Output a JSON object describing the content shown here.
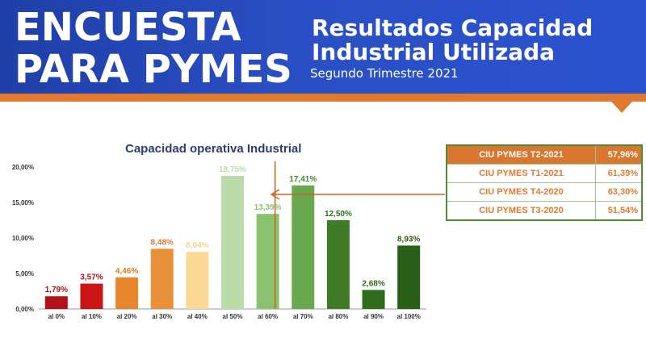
{
  "header": {
    "left_line1": "ENCUESTA",
    "left_line2": "PARA PYMES",
    "right_line1": "Resultados Capacidad",
    "right_line2": "Industrial Utilizada",
    "subtitle": "Segundo Trimestre 2021"
  },
  "colors": {
    "header_blue": "#2447b8",
    "accent_orange": "#e07a2e",
    "table_green": "#4d8a3a"
  },
  "chart_data": {
    "type": "bar",
    "title": "Capacidad operativa Industrial",
    "categories": [
      "al 0%",
      "al 10%",
      "al 20%",
      "al 30%",
      "al 40%",
      "al 50%",
      "al 60%",
      "al 70%",
      "al 80%",
      "al 90%",
      "al 100%"
    ],
    "values": [
      1.79,
      3.57,
      4.46,
      8.48,
      8.04,
      18.75,
      13.39,
      17.41,
      12.5,
      2.68,
      8.93
    ],
    "value_labels": [
      "1,79%",
      "3,57%",
      "4,46%",
      "8,48%",
      "8,04%",
      "18,75%",
      "13,39%",
      "17,41%",
      "12,50%",
      "2,68%",
      "8,93%"
    ],
    "bar_colors": [
      "#b3121b",
      "#cc1414",
      "#e8862e",
      "#e8903a",
      "#fbd894",
      "#b9dca9",
      "#8cc26f",
      "#6aa84f",
      "#3f7a26",
      "#2f6d1d",
      "#2a5f18"
    ],
    "label_colors": [
      "#a3121b",
      "#b3121b",
      "#e07a2e",
      "#e07a2e",
      "#f6d48a",
      "#b9dca9",
      "#8cc26f",
      "#3f8a26",
      "#2f6d1d",
      "#2f6d1d",
      "#2a5f18"
    ],
    "yticks": [
      "0,00%",
      "5,00%",
      "10,00%",
      "15,00%",
      "20,00%"
    ],
    "ylim": [
      0,
      20
    ],
    "grid": false,
    "annotation_line_at": "al 60%"
  },
  "legend_table": {
    "rows": [
      {
        "name": "CIU PYMES T2-2021",
        "value": "57,96%"
      },
      {
        "name": "CIU PYMES T1-2021",
        "value": "61,39%"
      },
      {
        "name": "CIU PYMES T4-2020",
        "value": "63,30%"
      },
      {
        "name": "CIU PYMES T3-2020",
        "value": "51,54%"
      }
    ]
  }
}
